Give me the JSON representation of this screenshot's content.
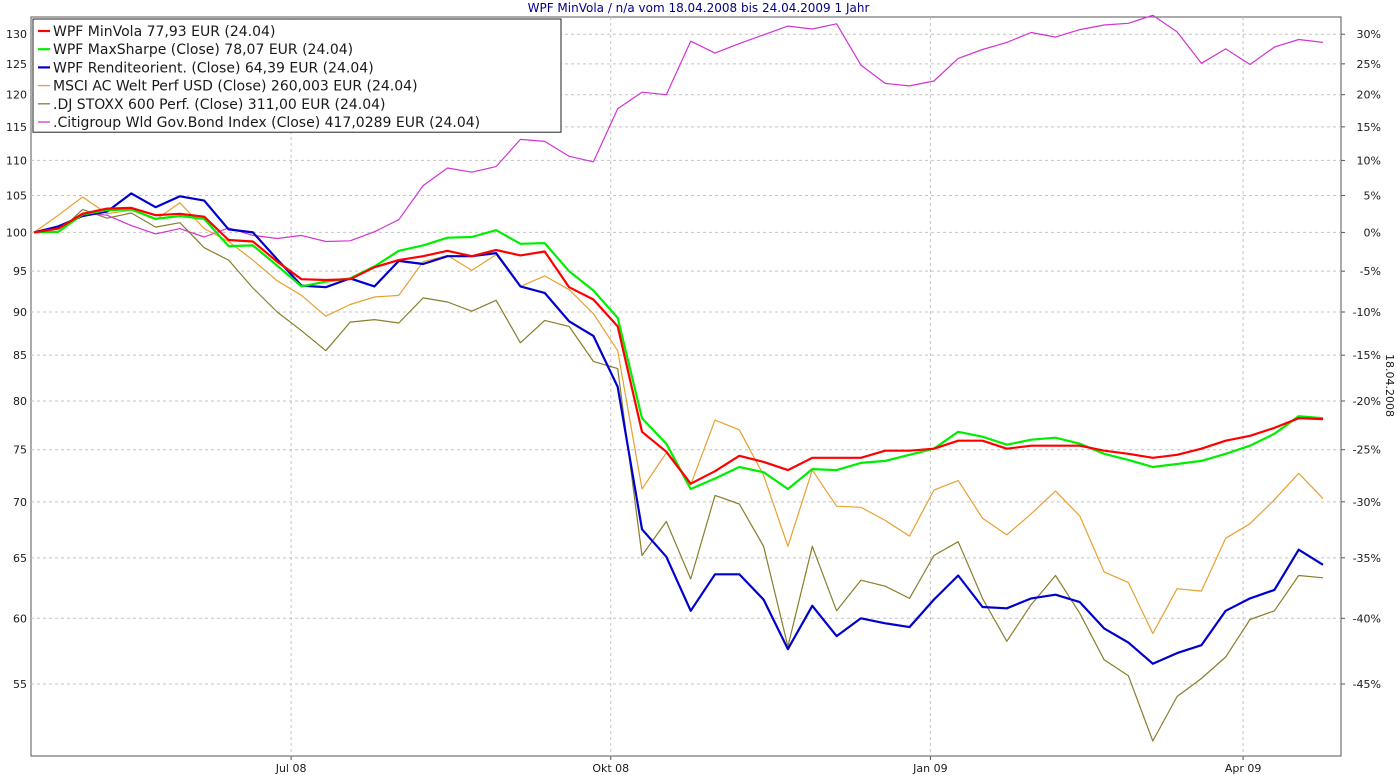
{
  "chart_data": {
    "type": "line",
    "title": "WPF MinVola / n/a vom 18.04.2008 bis 24.04.2009 1 Jahr",
    "y2label": "18.04.2008",
    "x_date_range": [
      "2008-04-18",
      "2009-04-24"
    ],
    "x_ticks": [
      {
        "date": "2008-07-01",
        "label": "Jul 08"
      },
      {
        "date": "2008-10-01",
        "label": "Okt 08"
      },
      {
        "date": "2009-01-01",
        "label": "Jan 09"
      },
      {
        "date": "2009-04-01",
        "label": "Apr 09"
      }
    ],
    "y_scale": "log",
    "ylim": [
      50,
      133
    ],
    "y_ticks": [
      55,
      60,
      65,
      70,
      75,
      80,
      85,
      90,
      95,
      100,
      105,
      110,
      115,
      120,
      125,
      130
    ],
    "y2_ticks": [
      {
        "pct": -45,
        "label": "-45%"
      },
      {
        "pct": -40,
        "label": "-40%"
      },
      {
        "pct": -35,
        "label": "-35%"
      },
      {
        "pct": -30,
        "label": "-30%"
      },
      {
        "pct": -25,
        "label": "-25%"
      },
      {
        "pct": -20,
        "label": "-20%"
      },
      {
        "pct": -15,
        "label": "-15%"
      },
      {
        "pct": -10,
        "label": "-10%"
      },
      {
        "pct": -5,
        "label": "-5%"
      },
      {
        "pct": 0,
        "label": "0%"
      },
      {
        "pct": 5,
        "label": "5%"
      },
      {
        "pct": 10,
        "label": "10%"
      },
      {
        "pct": 15,
        "label": "15%"
      },
      {
        "pct": 20,
        "label": "20%"
      },
      {
        "pct": 25,
        "label": "25%"
      },
      {
        "pct": 30,
        "label": "30%"
      }
    ],
    "grid": true,
    "legend_position": "top-left",
    "x": [
      "2008-04-18",
      "2008-04-25",
      "2008-05-02",
      "2008-05-09",
      "2008-05-16",
      "2008-05-23",
      "2008-05-30",
      "2008-06-06",
      "2008-06-13",
      "2008-06-20",
      "2008-06-27",
      "2008-07-04",
      "2008-07-11",
      "2008-07-18",
      "2008-07-25",
      "2008-08-01",
      "2008-08-08",
      "2008-08-15",
      "2008-08-22",
      "2008-08-29",
      "2008-09-05",
      "2008-09-12",
      "2008-09-19",
      "2008-09-26",
      "2008-10-03",
      "2008-10-10",
      "2008-10-17",
      "2008-10-24",
      "2008-10-31",
      "2008-11-07",
      "2008-11-14",
      "2008-11-21",
      "2008-11-28",
      "2008-12-05",
      "2008-12-12",
      "2008-12-19",
      "2008-12-26",
      "2009-01-02",
      "2009-01-09",
      "2009-01-16",
      "2009-01-23",
      "2009-01-30",
      "2009-02-06",
      "2009-02-13",
      "2009-02-20",
      "2009-02-27",
      "2009-03-06",
      "2009-03-13",
      "2009-03-20",
      "2009-03-27",
      "2009-04-03",
      "2009-04-10",
      "2009-04-17",
      "2009-04-24"
    ],
    "series": [
      {
        "name": "WPF MinVola 77,93 EUR (24.04)",
        "color": "#ff0000",
        "width": 2.2,
        "values": [
          100,
          100.5,
          102.5,
          103.2,
          103.3,
          102.3,
          102.5,
          102.1,
          99.0,
          98.8,
          96.2,
          94.0,
          93.9,
          94.0,
          95.5,
          96.4,
          96.9,
          97.6,
          96.9,
          97.7,
          97.0,
          97.5,
          93.0,
          91.5,
          88.3,
          76.8,
          74.8,
          71.7,
          72.9,
          74.4,
          73.8,
          73.0,
          74.2,
          74.2,
          74.2,
          74.9,
          74.9,
          75.1,
          75.9,
          75.9,
          75.1,
          75.4,
          75.4,
          75.4,
          74.9,
          74.6,
          74.2,
          74.5,
          75.1,
          75.9,
          76.4,
          77.2,
          78.2,
          78.1
        ]
      },
      {
        "name": "WPF MaxSharpe (Close) 78,07 EUR (24.04)",
        "color": "#00ee00",
        "width": 2.2,
        "values": [
          100,
          100.1,
          102.4,
          103.0,
          103.1,
          101.8,
          102.2,
          101.8,
          98.2,
          98.3,
          95.7,
          93.1,
          93.7,
          94.1,
          95.6,
          97.6,
          98.3,
          99.3,
          99.4,
          100.3,
          98.5,
          98.6,
          95.0,
          92.6,
          89.3,
          78.2,
          75.6,
          71.2,
          72.2,
          73.3,
          72.8,
          71.2,
          73.1,
          73.0,
          73.7,
          73.9,
          74.5,
          75.1,
          76.8,
          76.3,
          75.5,
          76.0,
          76.2,
          75.6,
          74.6,
          74.0,
          73.3,
          73.6,
          73.9,
          74.6,
          75.4,
          76.6,
          78.4,
          78.2
        ]
      },
      {
        "name": "WPF Renditeorient. (Close) 64,39 EUR (24.04)",
        "color": "#0000cc",
        "width": 2.2,
        "values": [
          100,
          100.8,
          102.2,
          102.8,
          105.3,
          103.4,
          104.9,
          104.3,
          100.4,
          100.0,
          96.5,
          93.2,
          93.0,
          94.1,
          93.1,
          96.3,
          95.9,
          96.9,
          96.9,
          97.3,
          93.1,
          92.3,
          88.9,
          87.2,
          81.5,
          67.5,
          65.1,
          60.6,
          63.6,
          63.6,
          61.5,
          57.6,
          61.0,
          58.6,
          60.0,
          59.6,
          59.3,
          61.5,
          63.5,
          60.9,
          60.8,
          61.6,
          61.9,
          61.3,
          59.2,
          58.1,
          56.5,
          57.3,
          57.9,
          60.6,
          61.6,
          62.3,
          65.7,
          64.4
        ]
      },
      {
        "name": "MSCI AC Welt Perf USD (Close) 260,003 EUR (24.04)",
        "color": "#e8a030",
        "width": 1.2,
        "values": [
          100,
          102.3,
          104.8,
          102.5,
          103.0,
          101.7,
          104.0,
          100.5,
          98.8,
          96.4,
          93.8,
          92.0,
          89.5,
          90.9,
          91.8,
          92.0,
          96.2,
          97.0,
          95.1,
          97.1,
          93.1,
          94.4,
          92.7,
          89.8,
          85.5,
          71.2,
          74.7,
          71.6,
          78.0,
          77.0,
          72.5,
          66.0,
          73.0,
          69.6,
          69.5,
          68.3,
          66.9,
          71.1,
          72.0,
          68.5,
          67.0,
          68.9,
          71.0,
          68.7,
          63.8,
          62.9,
          58.8,
          62.4,
          62.2,
          66.7,
          68.0,
          70.2,
          72.7,
          70.3
        ]
      },
      {
        "name": ".DJ STOXX 600 Perf. (Close) 311,00 EUR (24.04)",
        "color": "#8b7d2a",
        "width": 1.2,
        "values": [
          100,
          100.0,
          103.1,
          101.9,
          102.6,
          100.7,
          101.3,
          98.0,
          96.4,
          92.9,
          90.0,
          87.8,
          85.5,
          88.8,
          89.1,
          88.7,
          91.7,
          91.2,
          90.1,
          91.4,
          86.4,
          89.0,
          88.3,
          84.3,
          83.5,
          65.2,
          68.2,
          63.2,
          70.6,
          69.8,
          66.0,
          57.8,
          66.0,
          60.6,
          63.1,
          62.6,
          61.6,
          65.2,
          66.4,
          61.6,
          58.2,
          61.1,
          63.5,
          60.4,
          56.8,
          55.6,
          51.0,
          54.1,
          55.4,
          57.0,
          59.9,
          60.6,
          63.5,
          63.3
        ]
      },
      {
        "name": ".Citigroup Wld Gov.Bond Index (Close) 417,0289 EUR (24.04)",
        "color": "#d333d3",
        "width": 1.2,
        "values": [
          100,
          100.5,
          102.6,
          102.3,
          100.9,
          99.8,
          100.5,
          99.4,
          100.6,
          99.6,
          99.2,
          99.6,
          98.8,
          98.9,
          100.1,
          101.7,
          106.4,
          108.9,
          108.3,
          109.1,
          113.1,
          112.8,
          110.6,
          109.8,
          117.8,
          120.4,
          120.0,
          128.8,
          126.8,
          128.4,
          129.9,
          131.4,
          130.9,
          131.8,
          124.8,
          121.8,
          121.4,
          122.2,
          125.9,
          127.4,
          128.6,
          130.3,
          129.5,
          130.8,
          131.6,
          131.9,
          133.3,
          130.4,
          125.1,
          127.5,
          124.9,
          127.8,
          129.1,
          128.6
        ]
      }
    ]
  }
}
